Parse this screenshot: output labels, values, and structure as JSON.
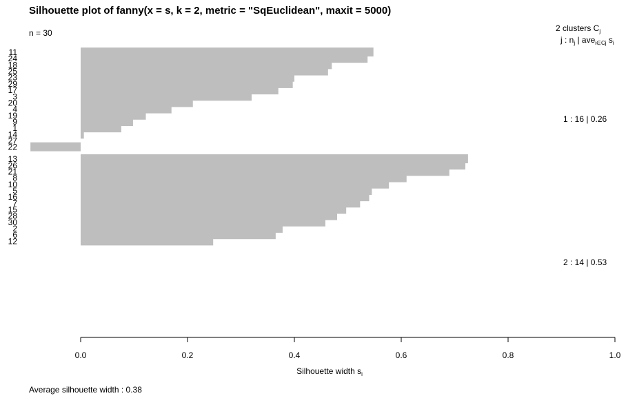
{
  "chart_data": {
    "type": "bar",
    "orientation": "horizontal",
    "title": "Silhouette plot of fanny(x = s, k = 2, metric = \"SqEuclidean\", maxit = 5000)",
    "n_label": "n = 30",
    "xlabel": {
      "text": "Silhouette width s",
      "sub": "i"
    },
    "xlim": [
      -0.1,
      1.0
    ],
    "xticks": [
      "0.0",
      "0.2",
      "0.4",
      "0.6",
      "0.8",
      "1.0"
    ],
    "bar_color": "#bebebe",
    "legend_header": {
      "line1": {
        "text": "2  clusters  C",
        "sub": "j"
      },
      "line2": {
        "j": "j :  n",
        "j_sub": "j",
        "mid": " | ave",
        "mid_sub": "i∈Cj",
        "end": "  s",
        "end_sub": "i"
      }
    },
    "clusters": [
      {
        "label": "1 :   16  | 0.26",
        "count": 16,
        "avg": 0.26
      },
      {
        "label": "2 :   14  | 0.53",
        "count": 14,
        "avg": 0.53
      }
    ],
    "categories": [
      "11",
      "24",
      "18",
      "25",
      "23",
      "29",
      "17",
      "3",
      "20",
      "4",
      "19",
      "9",
      "1",
      "14",
      "27",
      "22",
      "13",
      "26",
      "21",
      "8",
      "10",
      "5",
      "16",
      "7",
      "15",
      "28",
      "30",
      "2",
      "6",
      "12"
    ],
    "values": [
      0.548,
      0.537,
      0.47,
      0.463,
      0.4,
      0.397,
      0.37,
      0.32,
      0.21,
      0.17,
      0.122,
      0.098,
      0.076,
      0.006,
      0.0,
      -0.094,
      0.725,
      0.72,
      0.69,
      0.61,
      0.577,
      0.545,
      0.54,
      0.523,
      0.497,
      0.48,
      0.458,
      0.378,
      0.365,
      0.248
    ],
    "footer": "Average silhouette width :  0.38"
  }
}
